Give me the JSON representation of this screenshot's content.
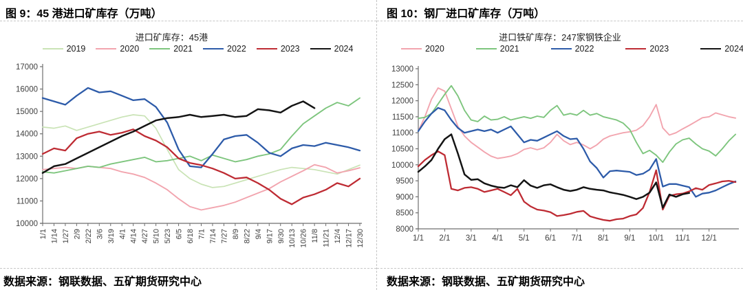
{
  "left_panel": {
    "title": "图 9：45 港进口矿库存（万吨）",
    "source": "数据来源：钢联数据、五矿期货研究中心"
  },
  "right_panel": {
    "title": "图 10：钢厂进口矿库存（万吨）",
    "source": "数据来源：钢联数据、五矿期货研究中心"
  },
  "chart_data": [
    {
      "type": "line",
      "title": "进口矿库存：45港",
      "ylabel": "",
      "xlabel": "",
      "ylim": [
        10000,
        17000
      ],
      "y_step": 1000,
      "y_ticks": [
        10000,
        11000,
        12000,
        13000,
        14000,
        15000,
        16000,
        17000
      ],
      "grid": false,
      "legend_position": "top",
      "x_mode": "category",
      "categories": [
        "1/1",
        "1/14",
        "1/27",
        "2/9",
        "2/22",
        "3/6",
        "3/19",
        "4/1",
        "4/14",
        "4/27",
        "5/10",
        "5/23",
        "6/5",
        "6/18",
        "7/1",
        "7/14",
        "7/27",
        "8/9",
        "8/22",
        "9/4",
        "9/17",
        "9/30",
        "10/13",
        "10/26",
        "11/8",
        "11/21",
        "12/4",
        "12/17",
        "12/30"
      ],
      "series": [
        {
          "name": "2019",
          "color": "#C9E3B5",
          "width": 1.7,
          "values": [
            14300,
            14250,
            14350,
            14150,
            14300,
            14450,
            14600,
            14750,
            14850,
            14800,
            14250,
            13300,
            12400,
            12000,
            11750,
            11600,
            11650,
            11800,
            11950,
            12100,
            12250,
            12400,
            12500,
            12450,
            12400,
            12300,
            12200,
            12400,
            12600
          ]
        },
        {
          "name": "2020",
          "color": "#F2A4AE",
          "width": 1.9,
          "values": [
            12400,
            12450,
            12500,
            12450,
            12550,
            12500,
            12450,
            12300,
            12200,
            12050,
            11800,
            11500,
            11100,
            10750,
            10600,
            10700,
            10800,
            10950,
            11150,
            11350,
            11550,
            11850,
            12100,
            12350,
            12620,
            12500,
            12250,
            12350,
            12480
          ]
        },
        {
          "name": "2021",
          "color": "#7DC57D",
          "width": 1.9,
          "values": [
            12300,
            12250,
            12350,
            12450,
            12550,
            12500,
            12650,
            12750,
            12850,
            12950,
            12750,
            12800,
            12900,
            13000,
            12800,
            13050,
            12900,
            12750,
            12850,
            13000,
            13100,
            13300,
            13900,
            14450,
            14800,
            15150,
            15400,
            15250,
            15600
          ]
        },
        {
          "name": "2022",
          "color": "#2D5BA9",
          "width": 2.3,
          "values": [
            15600,
            15450,
            15300,
            15700,
            16050,
            15850,
            15900,
            15700,
            15500,
            15550,
            15200,
            14500,
            13300,
            12550,
            12500,
            13100,
            13750,
            13900,
            13950,
            13600,
            13150,
            13000,
            13350,
            13500,
            13450,
            13600,
            13500,
            13400,
            13250
          ]
        },
        {
          "name": "2023",
          "color": "#BE2B33",
          "width": 2.3,
          "values": [
            13100,
            13350,
            13250,
            13800,
            14000,
            14100,
            13950,
            14050,
            14200,
            13900,
            13700,
            13400,
            12900,
            12700,
            12600,
            12450,
            12250,
            12000,
            12050,
            11800,
            11500,
            11100,
            10850,
            11150,
            11300,
            11500,
            11800,
            11650,
            12000
          ]
        },
        {
          "name": "2024",
          "color": "#141414",
          "width": 2.5,
          "values": [
            12250,
            12550,
            12650,
            12900,
            13150,
            13400,
            13650,
            13900,
            14100,
            14350,
            14600,
            14700,
            14750,
            14850,
            14750,
            14800,
            14850,
            14750,
            14800,
            15100,
            15050,
            14950,
            15250,
            15450,
            15150,
            null,
            null,
            null,
            null
          ]
        }
      ]
    },
    {
      "type": "line",
      "title": "进口铁矿库存：247家钢铁企业",
      "ylabel": "",
      "xlabel": "",
      "ylim": [
        8000,
        13000
      ],
      "y_step": 500,
      "y_ticks": [
        8000,
        8500,
        9000,
        9500,
        10000,
        10500,
        11000,
        11500,
        12000,
        12500,
        13000
      ],
      "grid": false,
      "legend_position": "top",
      "x_mode": "linear",
      "x_domain": [
        1,
        13.05
      ],
      "x_tick_values": [
        1,
        2,
        3,
        4,
        5,
        6,
        7,
        8,
        9,
        10,
        11,
        12
      ],
      "x_tick_labels": [
        "1/1",
        "2/1",
        "3/1",
        "4/1",
        "5/1",
        "6/1",
        "7/1",
        "8/1",
        "9/1",
        "10/1",
        "11/1",
        "12/1"
      ],
      "series_x_start": 1.0,
      "series_x_step": 0.25,
      "series": [
        {
          "name": "2020",
          "color": "#F2A4AE",
          "width": 1.9,
          "values": [
            11050,
            11500,
            12050,
            12400,
            12300,
            11750,
            11200,
            10900,
            10700,
            10550,
            10400,
            10270,
            10200,
            10230,
            10270,
            10350,
            10480,
            10530,
            10470,
            10530,
            10700,
            10950,
            10750,
            10630,
            10700,
            10620,
            10500,
            10620,
            10800,
            10900,
            10950,
            11000,
            11030,
            11080,
            11220,
            11500,
            11880,
            11150,
            10930,
            11000,
            11120,
            11230,
            11350,
            11470,
            11500,
            11620,
            11560,
            11500,
            11460
          ]
        },
        {
          "name": "2021",
          "color": "#7DC57D",
          "width": 1.9,
          "values": [
            11450,
            11480,
            11600,
            11900,
            12200,
            12470,
            12150,
            11700,
            11400,
            11350,
            11520,
            11400,
            11420,
            11500,
            11400,
            11450,
            11500,
            11450,
            11520,
            11480,
            11700,
            11850,
            11550,
            11600,
            11550,
            11700,
            11550,
            11600,
            11500,
            11450,
            11400,
            11300,
            11100,
            10700,
            10350,
            10450,
            10300,
            10080,
            10400,
            10650,
            10780,
            10830,
            10650,
            10500,
            10430,
            10280,
            10500,
            10750,
            10950
          ]
        },
        {
          "name": "2022",
          "color": "#2D5BA9",
          "width": 2.3,
          "values": [
            11050,
            11350,
            11600,
            11780,
            11700,
            11400,
            11150,
            11000,
            11050,
            11100,
            11050,
            11100,
            11000,
            11100,
            11200,
            10950,
            10700,
            10780,
            10750,
            10850,
            10950,
            11050,
            10900,
            10800,
            10820,
            10500,
            10100,
            9900,
            9600,
            9800,
            9820,
            9800,
            9780,
            9680,
            9720,
            9850,
            10180,
            9320,
            9400,
            9400,
            9350,
            9300,
            9000,
            9100,
            9130,
            9200,
            9300,
            9400,
            9480
          ]
        },
        {
          "name": "2023",
          "color": "#BE2B33",
          "width": 2.3,
          "values": [
            9950,
            10150,
            10300,
            10420,
            10300,
            9250,
            9200,
            9280,
            9300,
            9250,
            9150,
            9200,
            9250,
            9150,
            9050,
            9250,
            8850,
            8700,
            8600,
            8570,
            8520,
            8400,
            8430,
            8470,
            8530,
            8560,
            8390,
            8330,
            8280,
            8250,
            8300,
            8320,
            8400,
            8450,
            8650,
            9150,
            9830,
            8600,
            9030,
            9080,
            9100,
            9170,
            9270,
            9220,
            9370,
            9420,
            9480,
            9500,
            9460
          ]
        },
        {
          "name": "2024",
          "color": "#141414",
          "width": 2.5,
          "values": [
            9780,
            9950,
            10150,
            10500,
            10800,
            10950,
            10350,
            9700,
            9530,
            9550,
            9420,
            9350,
            9300,
            9280,
            9360,
            9300,
            9520,
            9350,
            9280,
            9360,
            9390,
            9300,
            9220,
            9180,
            9220,
            9300,
            9250,
            9220,
            9200,
            9140,
            9100,
            9060,
            9000,
            8930,
            9000,
            9130,
            9450,
            8660,
            9070,
            9000,
            9080,
            9120,
            null,
            null,
            null,
            null,
            null,
            null,
            null
          ]
        }
      ]
    }
  ]
}
